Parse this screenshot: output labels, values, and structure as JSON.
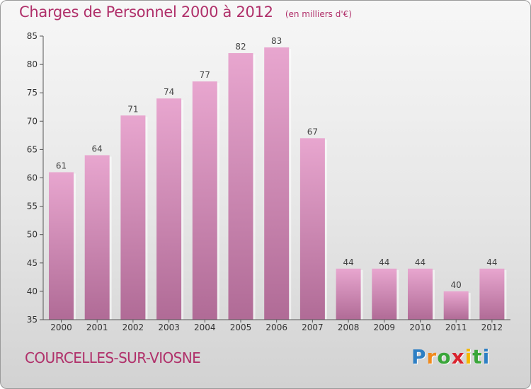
{
  "title": "Charges de Personnel 2000 à 2012",
  "subtitle": "(en milliers d'€)",
  "location": "COURCELLES-SUR-VIOSNE",
  "logo": {
    "letters": [
      "P",
      "r",
      "o",
      "x",
      "i",
      "t",
      "i"
    ],
    "colors": [
      "#2d7fc4",
      "#f08a1d",
      "#3aa63a",
      "#d9232e",
      "#f5b800",
      "#3aa63a",
      "#2d7fc4"
    ]
  },
  "colors": {
    "accent": "#b0306a",
    "bar_top": "#e8a6cf",
    "bar_bottom": "#b06b96"
  },
  "chart_data": {
    "type": "bar",
    "title": "Charges de Personnel 2000 à 2012",
    "subtitle": "(en milliers d'€)",
    "categories": [
      "2000",
      "2001",
      "2002",
      "2003",
      "2004",
      "2005",
      "2006",
      "2007",
      "2008",
      "2009",
      "2010",
      "2011",
      "2012"
    ],
    "values": [
      61,
      64,
      71,
      74,
      77,
      82,
      83,
      67,
      44,
      44,
      44,
      40,
      44
    ],
    "ylim": [
      35,
      85
    ],
    "yticks": [
      35,
      40,
      45,
      50,
      55,
      60,
      65,
      70,
      75,
      80,
      85
    ],
    "grid": false,
    "data_labels": true
  }
}
